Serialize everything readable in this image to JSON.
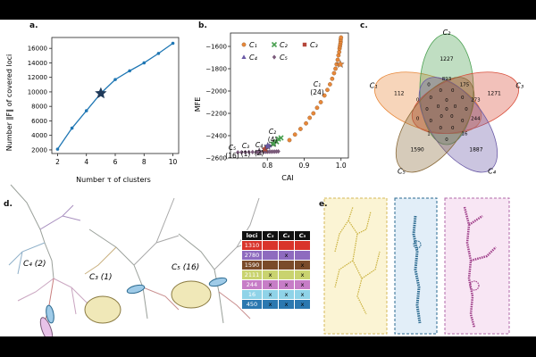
{
  "panel_labels": {
    "a": "a.",
    "b": "b.",
    "c": "c.",
    "d": "d.",
    "e": "e."
  },
  "chart_data": [
    {
      "type": "line",
      "panel": "a",
      "xlabel": "Number τ of clusters",
      "ylabel": "Number ‖F‖ of covered loci",
      "x": [
        2,
        3,
        4,
        5,
        6,
        7,
        8,
        9,
        10
      ],
      "values": [
        2100,
        5000,
        7400,
        9800,
        11700,
        12900,
        14000,
        15300,
        16700
      ],
      "highlight_index": 3,
      "xlim": [
        1.6,
        10.4
      ],
      "ylim": [
        1500,
        17500
      ],
      "xticks": [
        "2",
        "4",
        "6",
        "8",
        "10"
      ],
      "yticks": [
        "2000",
        "4000",
        "6000",
        "8000",
        "10000",
        "12000",
        "14000",
        "16000"
      ],
      "color": "#1f77b4"
    },
    {
      "type": "scatter",
      "panel": "b",
      "xlabel": "CAI",
      "ylabel": "MFE",
      "xlim": [
        0.7,
        1.02
      ],
      "ylim": [
        -2600,
        -1480
      ],
      "xticks": [
        "0.8",
        "0.9",
        "1.0"
      ],
      "yticks": [
        "-1600",
        "-1800",
        "-2000",
        "-2200",
        "-2400",
        "-2600"
      ],
      "series": [
        {
          "name": "C₁",
          "color": "#e8883a",
          "marker": "circle",
          "x": [
            0.86,
            0.875,
            0.89,
            0.905,
            0.915,
            0.925,
            0.935,
            0.945,
            0.955,
            0.963,
            0.97,
            0.976,
            0.981,
            0.985,
            0.988,
            0.991,
            0.993,
            0.995,
            0.996,
            0.997,
            0.998,
            0.999,
            0.999,
            1.0
          ],
          "y": [
            -2440,
            -2390,
            -2340,
            -2290,
            -2240,
            -2200,
            -2150,
            -2100,
            -2040,
            -1990,
            -1940,
            -1890,
            -1840,
            -1800,
            -1760,
            -1720,
            -1680,
            -1650,
            -1620,
            -1600,
            -1580,
            -1560,
            -1540,
            -1520
          ]
        },
        {
          "name": "C₂",
          "color": "#4aa051",
          "marker": "x",
          "x": [
            0.815,
            0.825,
            0.83,
            0.837
          ],
          "y": [
            -2475,
            -2455,
            -2430,
            -2420
          ]
        },
        {
          "name": "C₃",
          "color": "#b5473a",
          "marker": "square",
          "x": [
            0.793
          ],
          "y": [
            -2540
          ]
        },
        {
          "name": "C₄",
          "color": "#6a5aa6",
          "marker": "triangle",
          "x": [
            0.8,
            0.806
          ],
          "y": [
            -2500,
            -2490
          ]
        },
        {
          "name": "C₅",
          "color": "#7a5a7a",
          "marker": "diamond",
          "x": [
            0.72,
            0.73,
            0.74,
            0.75,
            0.76,
            0.77,
            0.78,
            0.79,
            0.795,
            0.8,
            0.805,
            0.81,
            0.815,
            0.82,
            0.825,
            0.83
          ],
          "y": [
            -2550,
            -2549,
            -2548,
            -2547,
            -2547,
            -2546,
            -2546,
            -2545,
            -2545,
            -2545,
            -2544,
            -2544,
            -2543,
            -2543,
            -2542,
            -2541
          ]
        }
      ],
      "stars": [
        {
          "x": 0.998,
          "y": -1760,
          "color": "#e8883a"
        },
        {
          "x": 0.817,
          "y": -2470,
          "color": "#4aa051"
        },
        {
          "x": 0.794,
          "y": -2520,
          "color": "#b5473a"
        },
        {
          "x": 0.801,
          "y": -2495,
          "color": "#6a5aa6"
        },
        {
          "x": 0.778,
          "y": -2545,
          "color": "#7a5a7a"
        }
      ],
      "annotations": [
        {
          "name": "C₁",
          "count": "(24)"
        },
        {
          "name": "C₂",
          "count": "(4)"
        },
        {
          "name": "C₃",
          "count": "(1)"
        },
        {
          "name": "C₄",
          "count": "(2)"
        },
        {
          "name": "C₅",
          "count": "(16)"
        }
      ]
    }
  ],
  "venn": {
    "sets": [
      {
        "name": "C₁",
        "color": "#e8883a"
      },
      {
        "name": "C₂",
        "color": "#4aa051"
      },
      {
        "name": "C₃",
        "color": "#d94e3a"
      },
      {
        "name": "C₄",
        "color": "#6a5aa6"
      },
      {
        "name": "C₅",
        "color": "#8a6a3a"
      }
    ],
    "unique_counts": [
      "112",
      "1227",
      "1271",
      "1887",
      "1590"
    ],
    "inner_counts": [
      "893",
      "175",
      "273",
      "244",
      "16",
      "0",
      "1",
      "0",
      "0",
      "0",
      "0",
      "0",
      "0",
      "0",
      "0",
      "0",
      "0",
      "0",
      "0",
      "0",
      "0",
      "0",
      "0",
      "0",
      "0",
      "0"
    ]
  },
  "structures_d": [
    {
      "name": "C₄",
      "count": "(2)"
    },
    {
      "name": "C₃",
      "count": "(1)"
    },
    {
      "name": "C₅",
      "count": "(16)"
    }
  ],
  "table": {
    "headers": [
      "loci",
      "C₃",
      "C₄",
      "C₅"
    ],
    "rows": [
      {
        "loci": "1310",
        "color": "#d9342b",
        "marks": [
          "",
          "",
          ""
        ]
      },
      {
        "loci": "2780",
        "color": "#8e6bbf",
        "marks": [
          "",
          "x",
          ""
        ]
      },
      {
        "loci": "1590",
        "color": "#7a4b2a",
        "marks": [
          "",
          "",
          "x"
        ]
      },
      {
        "loci": "2111",
        "color": "#c9d36f",
        "marks": [
          "x",
          "",
          "x"
        ]
      },
      {
        "loci": "244",
        "color": "#c77dc7",
        "marks": [
          "x",
          "x",
          "x"
        ]
      },
      {
        "loci": "16",
        "color": "#8fd3e8",
        "marks": [
          "x",
          "x",
          "x"
        ]
      },
      {
        "loci": "450",
        "color": "#2b78b0",
        "marks": [
          "x",
          "x",
          "x"
        ]
      }
    ]
  }
}
